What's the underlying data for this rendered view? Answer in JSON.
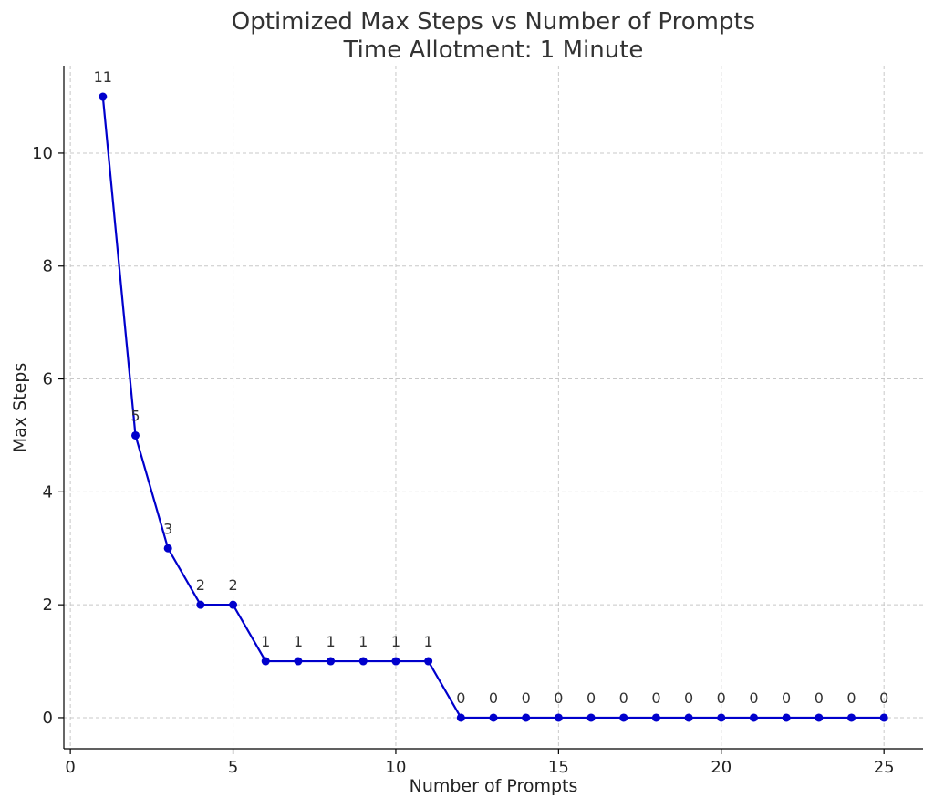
{
  "chart_data": {
    "type": "line",
    "title": "Optimized Max Steps vs Number of Prompts",
    "subtitle": "Time Allotment: 1 Minute",
    "xlabel": "Number of Prompts",
    "ylabel": "Max Steps",
    "xlim": [
      -0.2,
      26.2
    ],
    "ylim": [
      -0.55,
      11.55
    ],
    "xticks": [
      0,
      5,
      10,
      15,
      20,
      25
    ],
    "yticks": [
      0,
      2,
      4,
      6,
      8,
      10
    ],
    "grid": true,
    "series": [
      {
        "color": "#0000cc",
        "marker": "circle",
        "x": [
          1,
          2,
          3,
          4,
          5,
          6,
          7,
          8,
          9,
          10,
          11,
          12,
          13,
          14,
          15,
          16,
          17,
          18,
          19,
          20,
          21,
          22,
          23,
          24,
          25
        ],
        "y": [
          11,
          5,
          3,
          2,
          2,
          1,
          1,
          1,
          1,
          1,
          1,
          0,
          0,
          0,
          0,
          0,
          0,
          0,
          0,
          0,
          0,
          0,
          0,
          0,
          0
        ],
        "labels": [
          "11",
          "5",
          "3",
          "2",
          "2",
          "1",
          "1",
          "1",
          "1",
          "1",
          "1",
          "0",
          "0",
          "0",
          "0",
          "0",
          "0",
          "0",
          "0",
          "0",
          "0",
          "0",
          "0",
          "0",
          "0"
        ]
      }
    ]
  }
}
